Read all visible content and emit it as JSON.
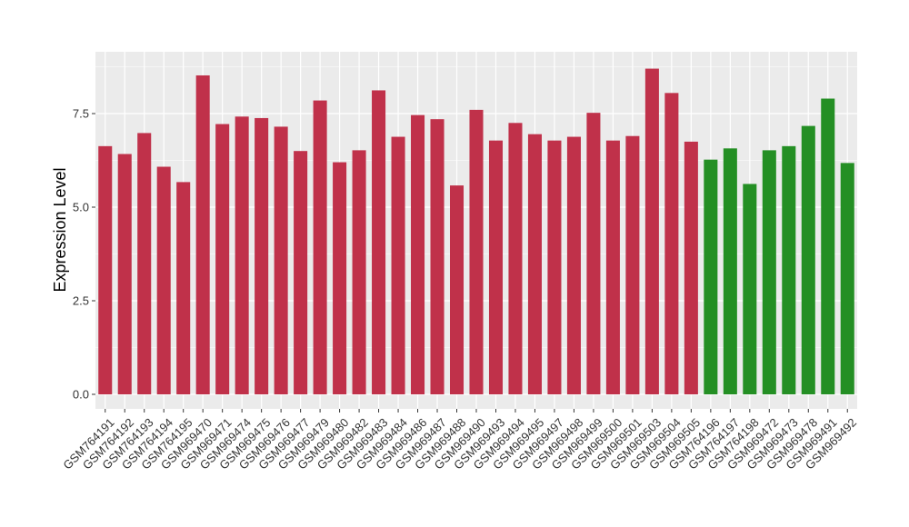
{
  "chart_data": {
    "type": "bar",
    "title": "",
    "xlabel": "",
    "ylabel": "Expression Level",
    "ylim": [
      0,
      9.1
    ],
    "yticks": [
      "0.0",
      "2.5",
      "5.0",
      "7.5"
    ],
    "ytick_values": [
      0,
      2.5,
      5.0,
      7.5
    ],
    "grid": true,
    "legend": "none",
    "colors": {
      "group1": "#C0314A",
      "group2": "#248F24",
      "panel": "#EBEBEB",
      "grid": "#FFFFFF"
    },
    "categories": [
      "GSM764191",
      "GSM764192",
      "GSM764193",
      "GSM764194",
      "GSM764195",
      "GSM969470",
      "GSM969471",
      "GSM969474",
      "GSM969475",
      "GSM969476",
      "GSM969477",
      "GSM969479",
      "GSM969480",
      "GSM969482",
      "GSM969483",
      "GSM969484",
      "GSM969486",
      "GSM969487",
      "GSM969488",
      "GSM969490",
      "GSM969493",
      "GSM969494",
      "GSM969495",
      "GSM969497",
      "GSM969498",
      "GSM969499",
      "GSM969500",
      "GSM969501",
      "GSM969503",
      "GSM969504",
      "GSM969505",
      "GSM764196",
      "GSM764197",
      "GSM764198",
      "GSM969472",
      "GSM969473",
      "GSM969478",
      "GSM969491",
      "GSM969492"
    ],
    "values": [
      6.63,
      6.42,
      6.98,
      6.08,
      5.67,
      8.52,
      7.22,
      7.42,
      7.38,
      7.15,
      6.5,
      7.85,
      6.2,
      6.52,
      8.12,
      6.88,
      7.46,
      7.35,
      5.58,
      7.6,
      6.78,
      7.25,
      6.95,
      6.78,
      6.88,
      7.52,
      6.78,
      6.9,
      8.7,
      8.05,
      6.75,
      6.27,
      6.57,
      5.62,
      6.52,
      6.63,
      7.17,
      7.9,
      6.18
    ],
    "groups": [
      1,
      1,
      1,
      1,
      1,
      1,
      1,
      1,
      1,
      1,
      1,
      1,
      1,
      1,
      1,
      1,
      1,
      1,
      1,
      1,
      1,
      1,
      1,
      1,
      1,
      1,
      1,
      1,
      1,
      1,
      1,
      2,
      2,
      2,
      2,
      2,
      2,
      2,
      2
    ]
  }
}
